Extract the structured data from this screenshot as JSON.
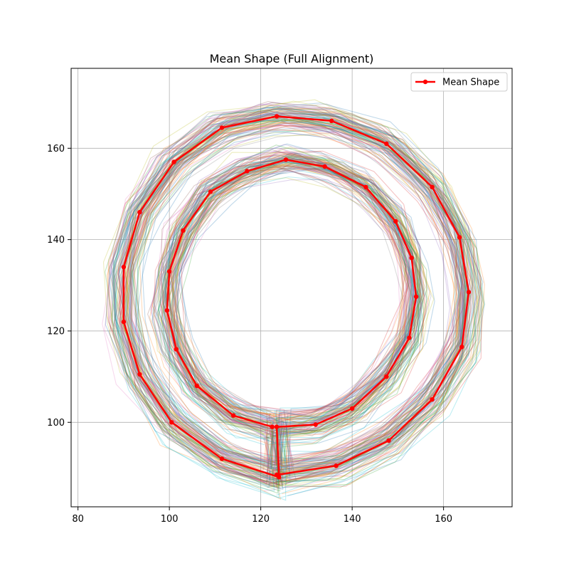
{
  "chart_data": {
    "type": "line",
    "title": "Mean Shape (Full Alignment)",
    "xlabel": "",
    "ylabel": "",
    "xlim": [
      78.5,
      175
    ],
    "ylim": [
      81.5,
      177.5
    ],
    "xticks": [
      80,
      100,
      120,
      140,
      160
    ],
    "yticks": [
      100,
      120,
      140,
      160
    ],
    "grid": true,
    "legend": {
      "position": "top-right",
      "entries": [
        "Mean Shape"
      ]
    },
    "mean_shape": {
      "name": "Mean Shape",
      "color": "#ff0000",
      "points": [
        [
          123.5,
          88.5
        ],
        [
          136.5,
          90.5
        ],
        [
          148.0,
          96.0
        ],
        [
          157.5,
          105.0
        ],
        [
          164.0,
          116.5
        ],
        [
          165.5,
          128.5
        ],
        [
          163.5,
          140.5
        ],
        [
          157.5,
          151.5
        ],
        [
          147.5,
          161.0
        ],
        [
          135.5,
          166.0
        ],
        [
          123.5,
          167.0
        ],
        [
          111.5,
          164.5
        ],
        [
          101.0,
          157.0
        ],
        [
          93.5,
          146.0
        ],
        [
          90.0,
          134.0
        ],
        [
          90.0,
          122.0
        ],
        [
          93.5,
          110.5
        ],
        [
          100.5,
          100.0
        ],
        [
          111.5,
          92.0
        ],
        [
          124.0,
          88.0
        ],
        [
          123.5,
          99.0
        ],
        [
          132.0,
          99.5
        ],
        [
          140.0,
          103.0
        ],
        [
          147.5,
          110.0
        ],
        [
          152.5,
          118.5
        ],
        [
          154.0,
          127.5
        ],
        [
          153.0,
          136.0
        ],
        [
          149.5,
          144.0
        ],
        [
          143.0,
          151.5
        ],
        [
          134.0,
          156.0
        ],
        [
          125.5,
          157.5
        ],
        [
          117.0,
          155.0
        ],
        [
          109.0,
          150.5
        ],
        [
          103.0,
          142.0
        ],
        [
          100.0,
          133.0
        ],
        [
          99.5,
          124.5
        ],
        [
          101.5,
          116.0
        ],
        [
          106.0,
          108.0
        ],
        [
          114.0,
          101.5
        ],
        [
          122.5,
          99.0
        ]
      ]
    },
    "background_shapes": {
      "count": 100,
      "alpha": 0.28,
      "palette": [
        "#1f77b4",
        "#ff7f0e",
        "#2ca02c",
        "#d62728",
        "#9467bd",
        "#8c564b",
        "#e377c2",
        "#7f7f7f",
        "#bcbd22",
        "#17becf"
      ]
    }
  }
}
